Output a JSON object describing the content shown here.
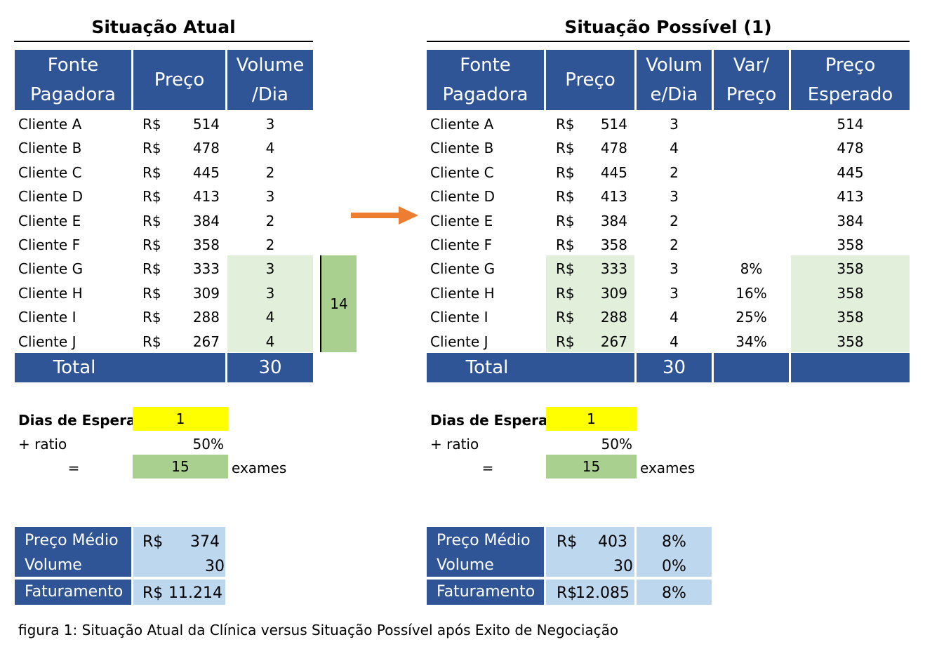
{
  "left": {
    "title": "Situação Atual",
    "headers": {
      "fonte_l1": "Fonte",
      "fonte_l2": "Pagadora",
      "preco": "Preço",
      "volume_l1": "Volume",
      "volume_l2": "/Dia"
    },
    "rows": [
      {
        "name": "Cliente A",
        "cur": "R$",
        "price": "514",
        "vol": "3"
      },
      {
        "name": "Cliente B",
        "cur": "R$",
        "price": "478",
        "vol": "4"
      },
      {
        "name": "Cliente C",
        "cur": "R$",
        "price": "445",
        "vol": "2"
      },
      {
        "name": "Cliente D",
        "cur": "R$",
        "price": "413",
        "vol": "3"
      },
      {
        "name": "Cliente E",
        "cur": "R$",
        "price": "384",
        "vol": "2"
      },
      {
        "name": "Cliente F",
        "cur": "R$",
        "price": "358",
        "vol": "2"
      },
      {
        "name": "Cliente G",
        "cur": "R$",
        "price": "333",
        "vol": "3"
      },
      {
        "name": "Cliente H",
        "cur": "R$",
        "price": "309",
        "vol": "3"
      },
      {
        "name": "Cliente I",
        "cur": "R$",
        "price": "288",
        "vol": "4"
      },
      {
        "name": "Cliente J",
        "cur": "R$",
        "price": "267",
        "vol": "4"
      }
    ],
    "group_sum": "14",
    "total_label": "Total",
    "total_value": "30",
    "dias_label": "Dias de Espera",
    "dias_value": "1",
    "ratio_label": "+ ratio",
    "ratio_value": "50%",
    "eq_label": "=",
    "eq_value": "15",
    "eq_unit": "exames",
    "preco_medio_label": "Preço Médio",
    "preco_medio_cur": "R$",
    "preco_medio_value": "374",
    "volume_label": "Volume",
    "volume_value": "30",
    "faturamento_label": "Faturamento",
    "faturamento_cur": "R$",
    "faturamento_value": "11.214"
  },
  "right": {
    "title": "Situação Possível (1)",
    "headers": {
      "fonte_l1": "Fonte",
      "fonte_l2": "Pagadora",
      "preco": "Preço",
      "volume_l1": "Volum",
      "volume_l2": "e/Dia",
      "var_l1": "Var/",
      "var_l2": "Preço",
      "esperado_l1": "Preço",
      "esperado_l2": "Esperado"
    },
    "rows": [
      {
        "name": "Cliente A",
        "cur": "R$",
        "price": "514",
        "vol": "3",
        "var": "",
        "exp": "514"
      },
      {
        "name": "Cliente B",
        "cur": "R$",
        "price": "478",
        "vol": "4",
        "var": "",
        "exp": "478"
      },
      {
        "name": "Cliente C",
        "cur": "R$",
        "price": "445",
        "vol": "2",
        "var": "",
        "exp": "445"
      },
      {
        "name": "Cliente D",
        "cur": "R$",
        "price": "413",
        "vol": "3",
        "var": "",
        "exp": "413"
      },
      {
        "name": "Cliente E",
        "cur": "R$",
        "price": "384",
        "vol": "2",
        "var": "",
        "exp": "384"
      },
      {
        "name": "Cliente F",
        "cur": "R$",
        "price": "358",
        "vol": "2",
        "var": "",
        "exp": "358"
      },
      {
        "name": "Cliente G",
        "cur": "R$",
        "price": "333",
        "vol": "3",
        "var": "8%",
        "exp": "358"
      },
      {
        "name": "Cliente H",
        "cur": "R$",
        "price": "309",
        "vol": "3",
        "var": "16%",
        "exp": "358"
      },
      {
        "name": "Cliente I",
        "cur": "R$",
        "price": "288",
        "vol": "4",
        "var": "25%",
        "exp": "358"
      },
      {
        "name": "Cliente J",
        "cur": "R$",
        "price": "267",
        "vol": "4",
        "var": "34%",
        "exp": "358"
      }
    ],
    "total_label": "Total",
    "total_value": "30",
    "dias_label": "Dias de Espera",
    "dias_value": "1",
    "ratio_label": "+ ratio",
    "ratio_value": "50%",
    "eq_label": "=",
    "eq_value": "15",
    "eq_unit": "exames",
    "preco_medio_label": "Preço Médio",
    "preco_medio_cur": "R$",
    "preco_medio_value": "403",
    "preco_medio_pct": "8%",
    "volume_label": "Volume",
    "volume_value": "30",
    "volume_pct": "0%",
    "faturamento_label": "Faturamento",
    "faturamento_cur": "R$",
    "faturamento_value": "12.085",
    "faturamento_pct": "8%"
  },
  "arrow": {
    "icon": "arrow-right-icon",
    "color": "#ed7d31"
  },
  "caption": "figura 1: Situação Atual da Clínica versus Situação Possível após Exito de Negociação"
}
